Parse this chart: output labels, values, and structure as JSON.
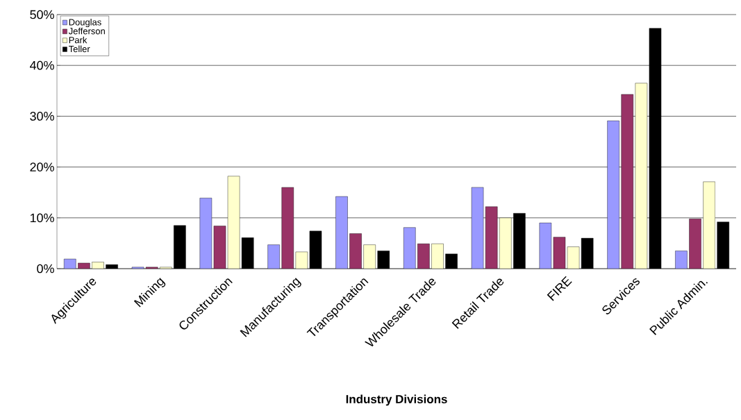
{
  "chart_data": {
    "type": "bar",
    "xlabel": "Industry Divisions",
    "categories": [
      "Agriculture",
      "Mining",
      "Construction",
      "Manufacturing",
      "Transportation",
      "Wholesale Trade",
      "Retail Trade",
      "FIRE",
      "Services",
      "Public Admin."
    ],
    "series": [
      {
        "name": "Douglas",
        "color": "#9999ff",
        "values": [
          1.9,
          0.3,
          13.9,
          4.7,
          14.2,
          8.1,
          16.0,
          9.0,
          29.1,
          3.5
        ]
      },
      {
        "name": "Jefferson",
        "color": "#993366",
        "values": [
          1.1,
          0.3,
          8.4,
          16.0,
          6.9,
          4.9,
          12.2,
          6.2,
          34.3,
          9.8
        ]
      },
      {
        "name": "Park",
        "color": "#ffffcc",
        "values": [
          1.3,
          0.3,
          18.2,
          3.3,
          4.7,
          4.9,
          10.0,
          4.3,
          36.5,
          17.1
        ]
      },
      {
        "name": "Teller",
        "color": "#000000",
        "values": [
          0.8,
          8.5,
          6.1,
          7.4,
          3.5,
          2.9,
          10.9,
          6.0,
          47.3,
          9.2
        ]
      }
    ],
    "ylim": [
      0,
      50
    ],
    "yticks": [
      {
        "value": 0,
        "label": "0%"
      },
      {
        "value": 10,
        "label": "10%"
      },
      {
        "value": 20,
        "label": "20%"
      },
      {
        "value": 30,
        "label": "30%"
      },
      {
        "value": 40,
        "label": "40%"
      },
      {
        "value": 50,
        "label": "50%"
      }
    ],
    "grid": "y",
    "legend": "top left"
  }
}
